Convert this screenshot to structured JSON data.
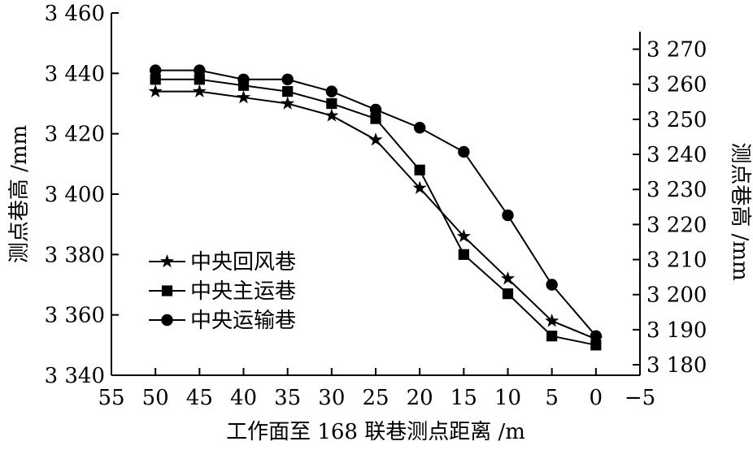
{
  "chart_data": {
    "type": "line",
    "xlabel": "工作面至 168 联巷测点距离 /m",
    "ylabel_left": "测点巷高 /mm",
    "ylabel_right": "测点巷高 /mm",
    "xlim": [
      55,
      -5
    ],
    "xticks": [
      55,
      50,
      45,
      40,
      35,
      30,
      25,
      20,
      15,
      10,
      5,
      0,
      -5
    ],
    "xtick_labels": [
      "55",
      "50",
      "45",
      "40",
      "35",
      "30",
      "25",
      "20",
      "15",
      "10",
      "5",
      "0",
      "−5"
    ],
    "ylim_left": [
      3340,
      3460
    ],
    "yticks_left": [
      3340,
      3360,
      3380,
      3400,
      3420,
      3440,
      3460
    ],
    "ytick_labels_left": [
      "3 340",
      "3 360",
      "3 380",
      "3 400",
      "3 420",
      "3 440",
      "3 460"
    ],
    "ylim_right": [
      3177,
      3275
    ],
    "yticks_right": [
      3180,
      3190,
      3200,
      3210,
      3220,
      3230,
      3240,
      3250,
      3260,
      3270
    ],
    "ytick_labels_right": [
      "3 180",
      "3 190",
      "3 200",
      "3 210",
      "3 220",
      "3 230",
      "3 240",
      "3 250",
      "3 260",
      "3 270"
    ],
    "legend_position": "lower-left",
    "grid": false,
    "series": [
      {
        "name": "中央回风巷",
        "marker": "star",
        "x": [
          50,
          45,
          40,
          35,
          30,
          25,
          20,
          15,
          10,
          5,
          0
        ],
        "y": [
          3434,
          3434,
          3432,
          3430,
          3426,
          3418,
          3402,
          3386,
          3372,
          3358,
          3352
        ]
      },
      {
        "name": "中央主运巷",
        "marker": "square",
        "x": [
          50,
          45,
          40,
          35,
          30,
          25,
          20,
          15,
          10,
          5,
          0
        ],
        "y": [
          3438,
          3438,
          3436,
          3434,
          3430,
          3425,
          3408,
          3380,
          3367,
          3353,
          3350
        ]
      },
      {
        "name": "中央运输巷",
        "marker": "circle",
        "x": [
          50,
          45,
          40,
          35,
          30,
          25,
          20,
          15,
          10,
          5,
          0
        ],
        "y": [
          3441,
          3441,
          3438,
          3438,
          3434,
          3428,
          3422,
          3414,
          3393,
          3370,
          3353
        ]
      }
    ]
  }
}
